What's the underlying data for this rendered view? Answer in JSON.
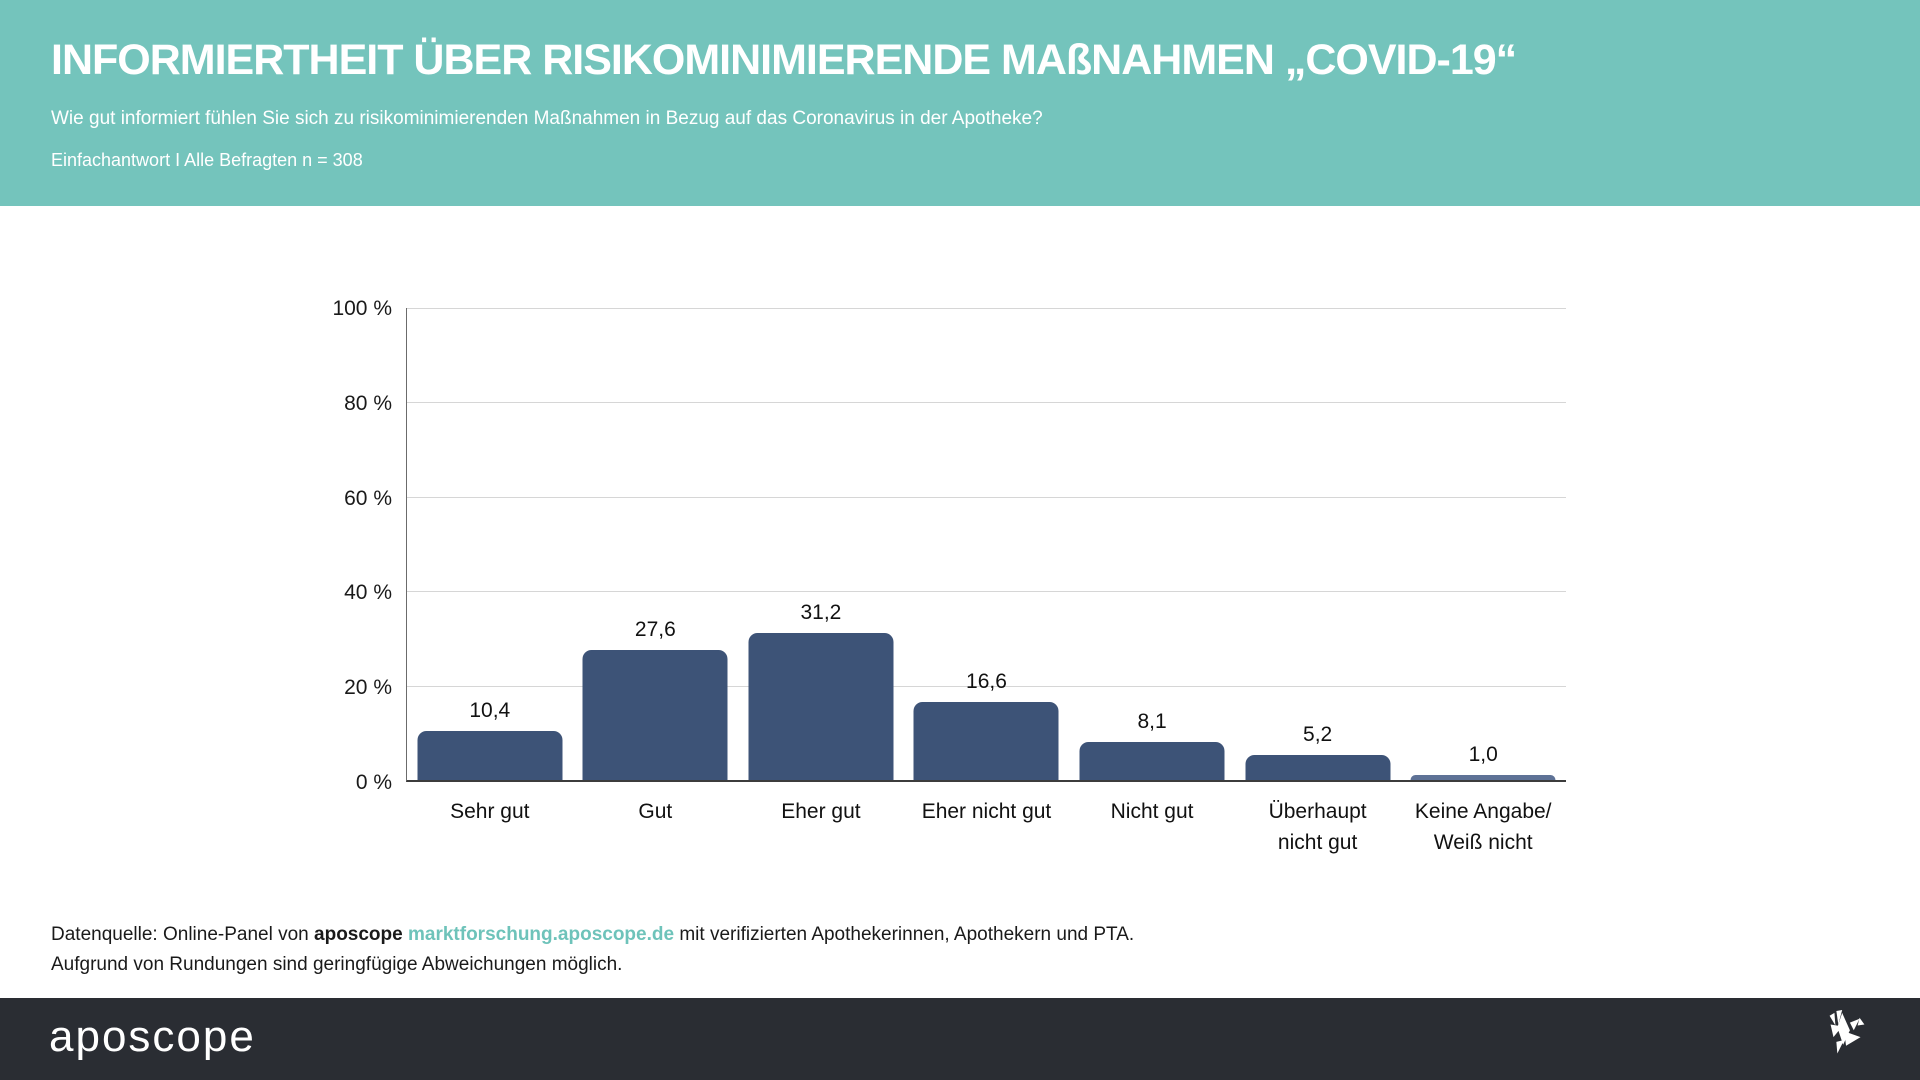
{
  "header": {
    "title": "INFORMIERTHEIT ÜBER RISIKOMINIMIERENDE MAßNAHMEN „COVID-19“",
    "subtitle": "Wie gut informiert fühlen Sie sich zu risikominimierenden Maßnahmen in Bezug auf das Coronavirus in der Apotheke?",
    "sample_note": "Einfachantwort I Alle Befragten n = 308",
    "background_color": "#74c4bc"
  },
  "chart_data": {
    "type": "bar",
    "categories": [
      "Sehr gut",
      "Gut",
      "Eher gut",
      "Eher nicht gut",
      "Nicht gut",
      "Überhaupt\nnicht gut",
      "Keine Angabe/\nWeiß nicht"
    ],
    "values": [
      10.4,
      27.6,
      31.2,
      16.6,
      8.1,
      5.2,
      1.0
    ],
    "value_labels": [
      "10,4",
      "27,6",
      "31,2",
      "16,6",
      "8,1",
      "5,2",
      "1,0"
    ],
    "unit": "%",
    "ylim": [
      0,
      100
    ],
    "ytick_step": 20,
    "ytick_labels": [
      "100 %",
      "80 %",
      "60 %",
      "40 %",
      "20 %",
      "0 %"
    ],
    "grid": true,
    "legend": false,
    "bar_color": "#3d5377",
    "last_bar_color": "#5e7296",
    "xlabel": "",
    "ylabel": ""
  },
  "footer": {
    "source_prefix": "Datenquelle: Online-Panel von ",
    "source_brand": "aposcope",
    "source_sep": " ",
    "source_link": "marktforschung.aposcope.de",
    "source_suffix": " mit verifizierten Apothekerinnen, Apothekern und PTA.",
    "note": "Aufgrund von Rundungen sind geringfügige Abweichungen möglich.",
    "link_color": "#6ec3ba"
  },
  "brandbar": {
    "logo_text": "aposcope",
    "background_color": "#2a2d33",
    "logo_icon": "origami-bird-icon"
  }
}
